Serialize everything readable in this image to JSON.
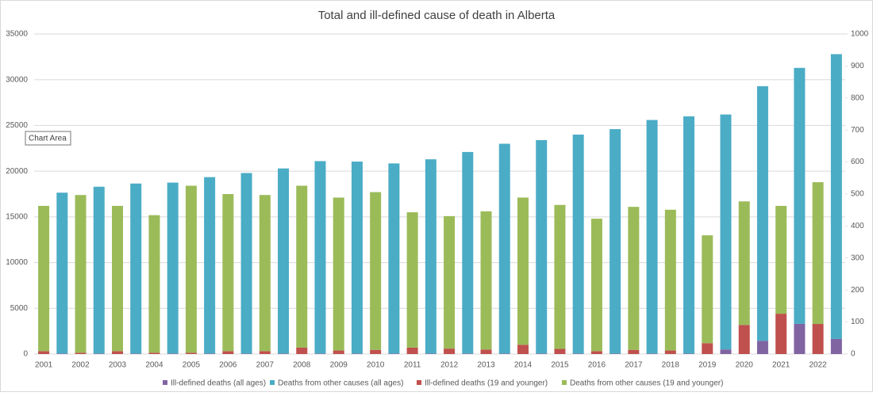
{
  "chart_data": {
    "type": "bar",
    "stacked": true,
    "title": "Total and ill-defined cause of death in Alberta",
    "tooltip": "Chart Area",
    "categories": [
      "2001",
      "2002",
      "2003",
      "2004",
      "2005",
      "2006",
      "2007",
      "2008",
      "2009",
      "2010",
      "2011",
      "2012",
      "2013",
      "2014",
      "2015",
      "2016",
      "2017",
      "2018",
      "2019",
      "2020",
      "2021",
      "2022"
    ],
    "series": [
      {
        "name": "Ill-defined deaths (all ages)",
        "color": "#8064a2",
        "values": [
          50,
          50,
          50,
          50,
          50,
          50,
          50,
          50,
          50,
          50,
          50,
          50,
          50,
          50,
          50,
          50,
          50,
          50,
          500,
          1450,
          3300,
          1650
        ]
      },
      {
        "name": "Deaths from other causes (all ages)",
        "color": "#4bacc6",
        "values": [
          17600,
          18250,
          18600,
          18700,
          19300,
          19750,
          20250,
          21050,
          21000,
          20800,
          21250,
          22050,
          22950,
          23350,
          23950,
          24550,
          25550,
          25950,
          25700,
          27850,
          28000,
          31150
        ]
      },
      {
        "name": "Ill-defined deaths (19 and younger)",
        "color": "#c0504d",
        "axis": "y2",
        "values": [
          9,
          4,
          9,
          4,
          4,
          9,
          9,
          20,
          11,
          13,
          20,
          17,
          14,
          29,
          16,
          9,
          13,
          11,
          34,
          91,
          126,
          94
        ]
      },
      {
        "name": "Deaths from other causes (19 and younger)",
        "color": "#9bbb59",
        "axis": "y2",
        "values": [
          454,
          493,
          454,
          430,
          522,
          491,
          488,
          506,
          478,
          493,
          423,
          414,
          432,
          460,
          450,
          414,
          447,
          440,
          337,
          386,
          337,
          443
        ]
      }
    ],
    "ylim": [
      0,
      35000
    ],
    "yticks": [
      0,
      5000,
      10000,
      15000,
      20000,
      25000,
      30000,
      35000
    ],
    "y2lim": [
      0,
      1000
    ],
    "y2ticks": [
      0,
      100,
      200,
      300,
      400,
      500,
      600,
      700,
      800,
      900,
      1000
    ],
    "grid": true,
    "legend": "bottom"
  }
}
